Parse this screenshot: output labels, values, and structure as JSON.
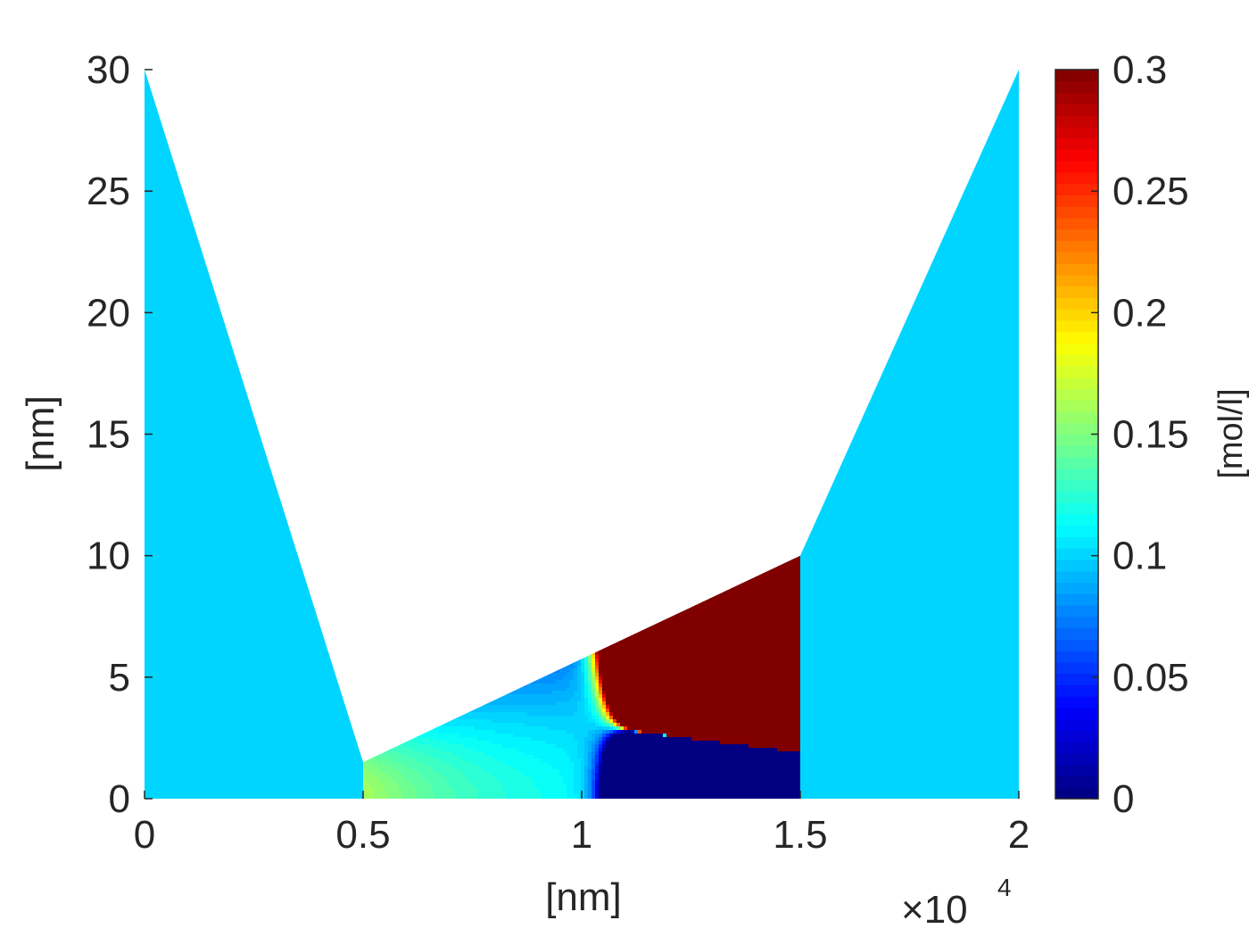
{
  "chart_data": {
    "type": "heatmap",
    "title": "",
    "xlabel": "[nm]",
    "ylabel": "[nm]",
    "x_multiplier_label": "×10",
    "x_multiplier_exponent": "4",
    "xlim": [
      0,
      20000
    ],
    "ylim": [
      0,
      30
    ],
    "x_ticks": [
      {
        "value": 0,
        "label": "0"
      },
      {
        "value": 5000,
        "label": "0.5"
      },
      {
        "value": 10000,
        "label": "1"
      },
      {
        "value": 15000,
        "label": "1.5"
      },
      {
        "value": 20000,
        "label": "2"
      }
    ],
    "y_ticks": [
      {
        "value": 0,
        "label": "0"
      },
      {
        "value": 5,
        "label": "5"
      },
      {
        "value": 10,
        "label": "10"
      },
      {
        "value": 15,
        "label": "15"
      },
      {
        "value": 20,
        "label": "20"
      },
      {
        "value": 25,
        "label": "25"
      },
      {
        "value": 30,
        "label": "30"
      }
    ],
    "colormap": "jet",
    "colorbar": {
      "label": "[mol/l]",
      "range": [
        0,
        0.3
      ],
      "ticks": [
        {
          "value": 0,
          "label": "0"
        },
        {
          "value": 0.05,
          "label": "0.05"
        },
        {
          "value": 0.1,
          "label": "0.1"
        },
        {
          "value": 0.15,
          "label": "0.15"
        },
        {
          "value": 0.2,
          "label": "0.2"
        },
        {
          "value": 0.25,
          "label": "0.25"
        },
        {
          "value": 0.3,
          "label": "0.3"
        }
      ]
    },
    "regions": [
      {
        "name": "left-reservoir",
        "value": 0.1,
        "polygon": [
          [
            0,
            0
          ],
          [
            0,
            30
          ],
          [
            5000,
            1.5
          ],
          [
            5000,
            0
          ]
        ]
      },
      {
        "name": "right-reservoir",
        "value": 0.1,
        "polygon": [
          [
            15000,
            0
          ],
          [
            15000,
            10
          ],
          [
            20000,
            30
          ],
          [
            20000,
            0
          ]
        ]
      },
      {
        "name": "channel",
        "polygon": [
          [
            5000,
            0
          ],
          [
            5000,
            1.5
          ],
          [
            15000,
            10
          ],
          [
            15000,
            0
          ]
        ],
        "peak_value": 0.3,
        "peak_location": [
          6300,
          0.3
        ],
        "wall_value": 0,
        "outlet_value": 0.1
      }
    ],
    "grid": false,
    "legend": "none"
  }
}
